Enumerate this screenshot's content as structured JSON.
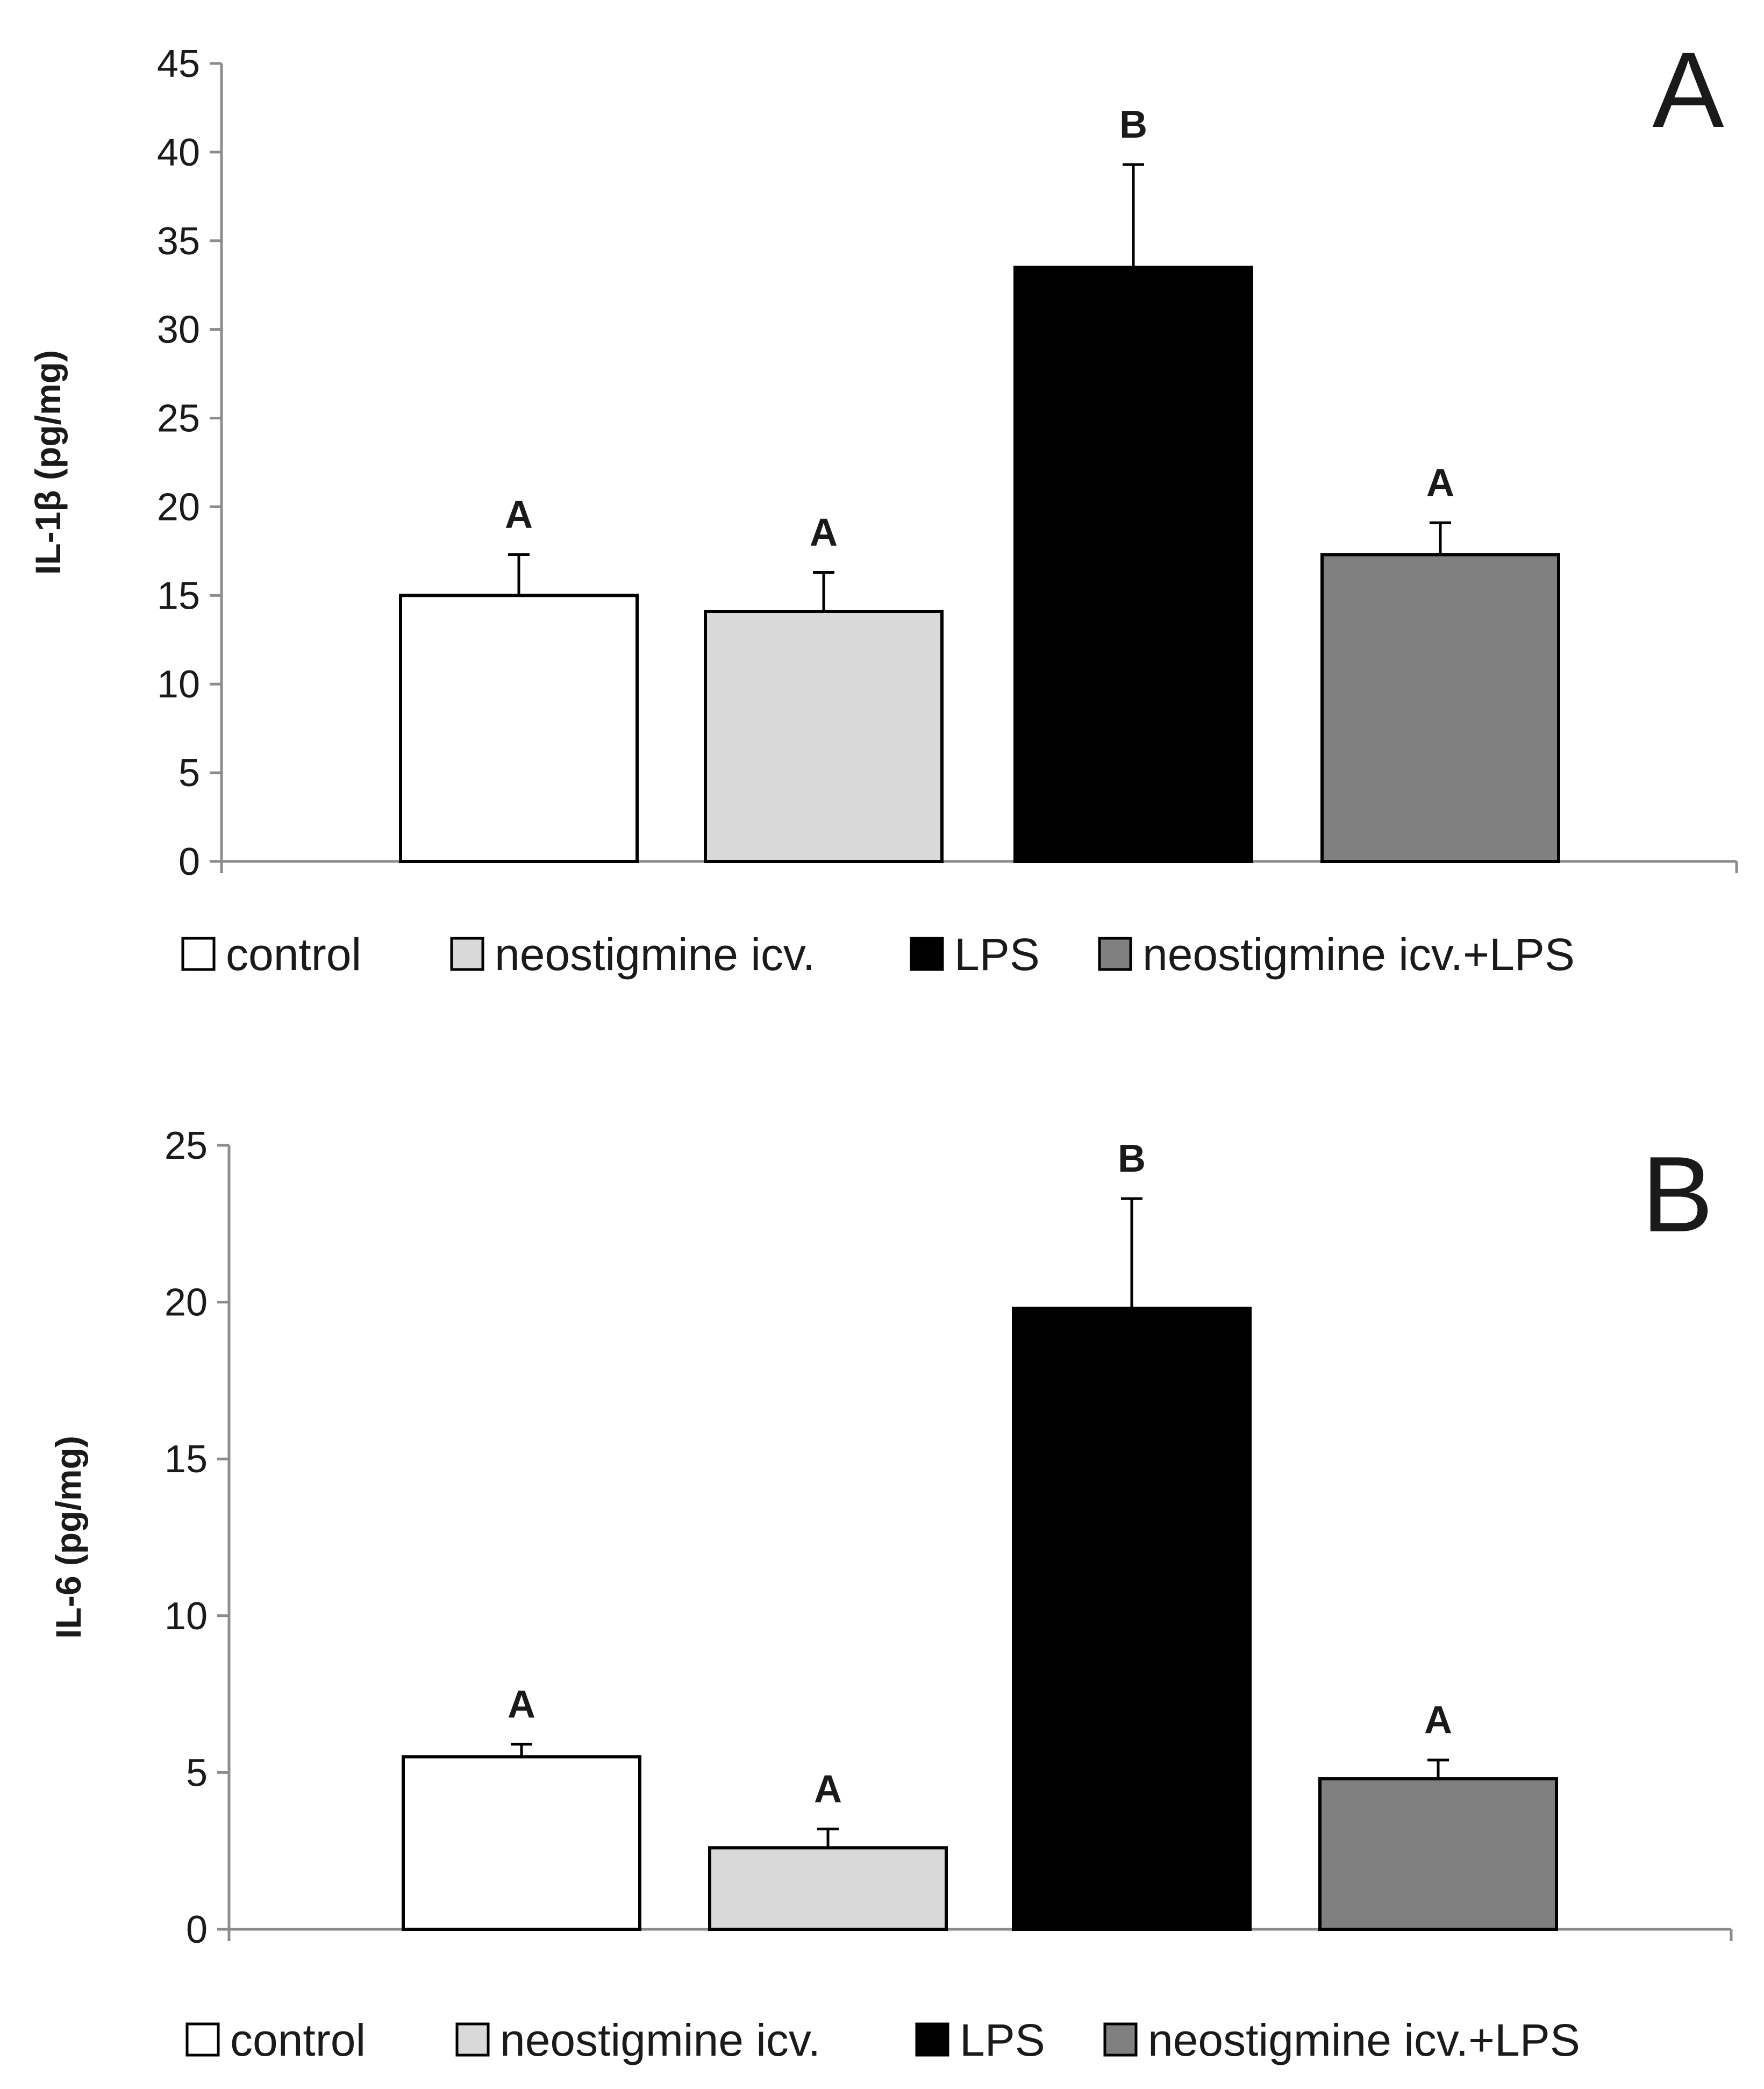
{
  "colors": {
    "control": "#ffffff",
    "neostigmine_icv": "#d9d9d9",
    "lps": "#000000",
    "neostigmine_icv_lps": "#808080",
    "axis": "#8c8c8c",
    "outline": "#000000"
  },
  "chart_data": [
    {
      "type": "bar",
      "panel_label": "A",
      "title": "",
      "xlabel": "",
      "ylabel": "IL-1β (pg/mg)",
      "ylim": [
        0,
        45
      ],
      "yticks": [
        0,
        5,
        10,
        15,
        20,
        25,
        30,
        35,
        40,
        45
      ],
      "grid": false,
      "legend_position": "bottom",
      "categories": [
        "control",
        "neostigmine icv.",
        "LPS",
        "neostigmine icv.+LPS"
      ],
      "values": [
        15.0,
        14.1,
        33.5,
        17.3
      ],
      "errors": [
        2.3,
        2.2,
        5.8,
        1.8
      ],
      "significance": [
        "A",
        "A",
        "B",
        "A"
      ],
      "legend": [
        "control",
        "neostigmine icv.",
        "LPS",
        "neostigmine icv.+LPS"
      ]
    },
    {
      "type": "bar",
      "panel_label": "B",
      "title": "",
      "xlabel": "",
      "ylabel": "IL-6 (pg/mg)",
      "ylim": [
        0,
        25
      ],
      "yticks": [
        0,
        5,
        10,
        15,
        20,
        25
      ],
      "grid": false,
      "legend_position": "bottom",
      "categories": [
        "control",
        "neostigmine icv.",
        "LPS",
        "neostigmine icv.+LPS"
      ],
      "values": [
        5.5,
        2.6,
        19.8,
        4.8
      ],
      "errors": [
        0.4,
        0.6,
        3.5,
        0.6
      ],
      "significance": [
        "A",
        "A",
        "B",
        "A"
      ],
      "legend": [
        "control",
        "neostigmine icv.",
        "LPS",
        "neostigmine icv.+LPS"
      ]
    }
  ]
}
